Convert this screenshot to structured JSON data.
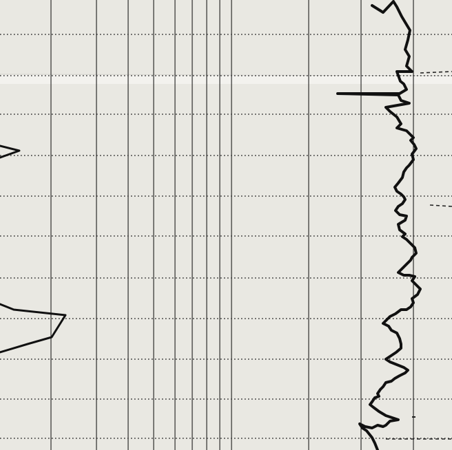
{
  "document": {
    "kind": "well log strip chart (scanned paper)",
    "paper_color": "#e9e8e2",
    "ink_color": "#111111",
    "printed_text": []
  }
}
